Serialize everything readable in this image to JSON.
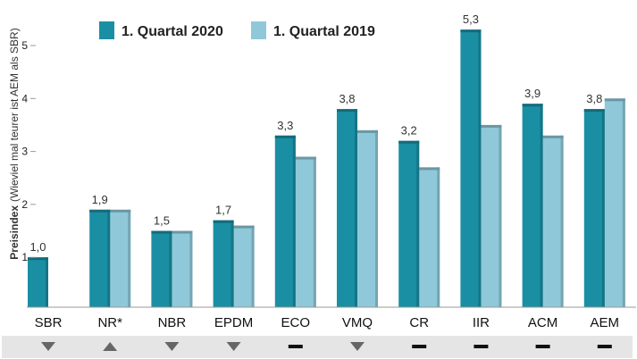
{
  "chart_data": {
    "type": "bar",
    "title": "",
    "xlabel": "",
    "ylabel_bold": "Preisindex",
    "ylabel_rest": "(Wieviel  mal teurer ist AEM als SBR)",
    "ylim": [
      0,
      5.5
    ],
    "yticks": [
      1,
      2,
      3,
      4,
      5
    ],
    "grid": false,
    "legend_position": "top-center",
    "categories": [
      "SBR",
      "NR*",
      "NBR",
      "EPDM",
      "ECO",
      "VMQ",
      "CR",
      "IIR",
      "ACM",
      "AEM"
    ],
    "series": [
      {
        "name": "1. Quartal 2020",
        "color": "#1a8fa3",
        "values": [
          1.0,
          1.9,
          1.5,
          1.7,
          3.3,
          3.8,
          3.2,
          5.3,
          3.9,
          3.8
        ]
      },
      {
        "name": "1. Quartal 2019",
        "color": "#8fc9d9",
        "values": [
          null,
          1.9,
          1.5,
          1.6,
          2.9,
          3.4,
          2.7,
          3.5,
          3.3,
          4.0
        ]
      }
    ],
    "data_labels": [
      "1,0",
      "1,9",
      "1,5",
      "1,7",
      "3,3",
      "3,8",
      "3,2",
      "5,3",
      "3,9",
      "3,8"
    ],
    "trend_icons": [
      "down-triangle-icon",
      "up-triangle-icon",
      "down-triangle-icon",
      "down-triangle-icon",
      "dash-icon",
      "down-triangle-icon",
      "dash-icon",
      "dash-icon",
      "dash-icon",
      "dash-icon"
    ],
    "colors": {
      "trend": "#666666",
      "trend_bar": "#e5e5e5",
      "axis": "#999999"
    }
  }
}
